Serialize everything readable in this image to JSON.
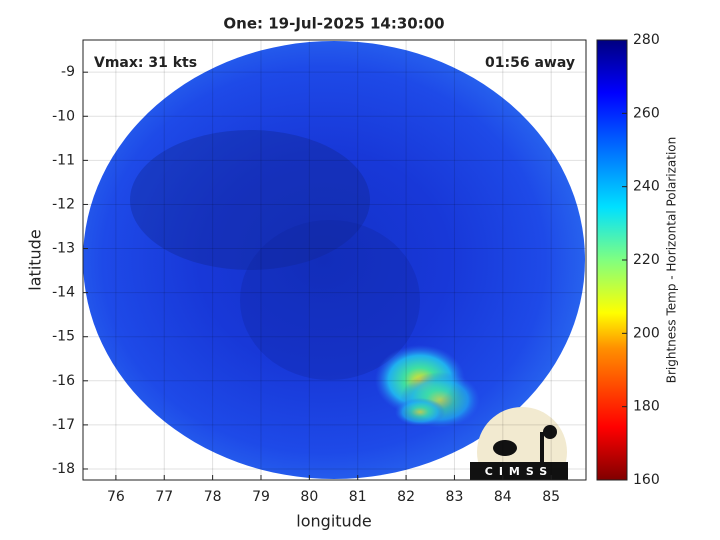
{
  "chart_data": {
    "type": "image",
    "title": "One: 19-Jul-2025 14:30:00",
    "annotations": [
      "Vmax: 31 kts",
      "01:56 away"
    ],
    "xlabel": "longitude",
    "ylabel": "latitude",
    "xlim": [
      75.32,
      85.72
    ],
    "ylim": [
      -18.25,
      -8.27
    ],
    "xticks": [
      76,
      77,
      78,
      79,
      80,
      81,
      82,
      83,
      84,
      85
    ],
    "yticks": [
      -18,
      -17,
      -16,
      -15,
      -14,
      -13,
      -12,
      -11,
      -10,
      -9
    ],
    "grid": true,
    "colorbar": {
      "label": "Brightness Temp - Horizontal Polarization",
      "lim": [
        160,
        280
      ],
      "ticks": [
        160,
        180,
        200,
        220,
        240,
        260,
        280
      ]
    },
    "logo": "CIMSS"
  }
}
